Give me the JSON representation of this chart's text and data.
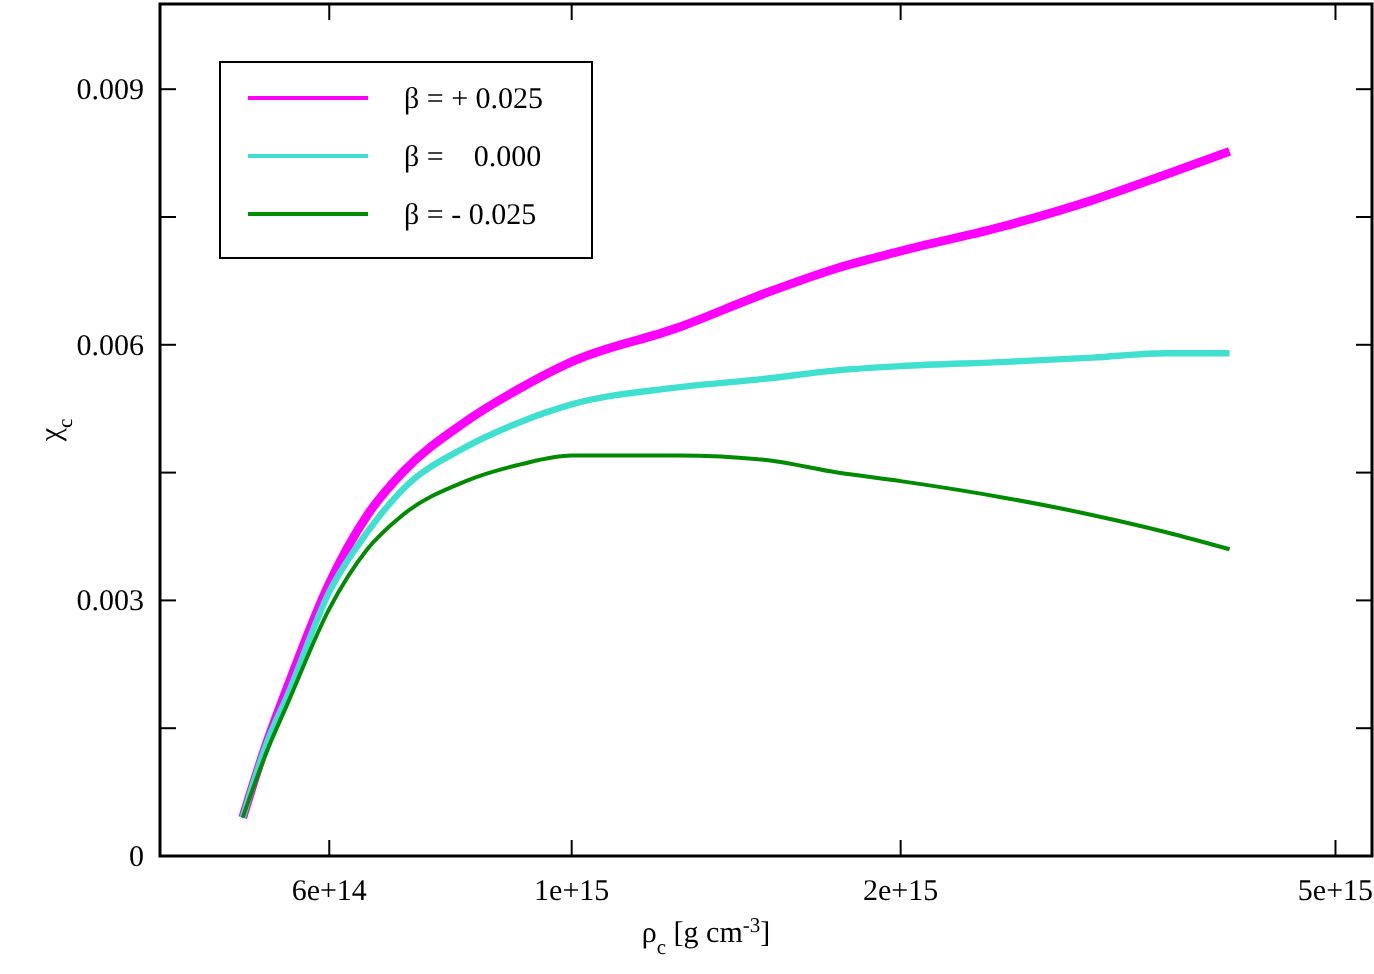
{
  "chart_data": {
    "type": "line",
    "xlabel": "ρ$_{c}$ [g cm$^{-3}$]",
    "ylabel": "χ$_{c}$",
    "log": "x",
    "x": [
      500000000000000.0,
      525000000000000.0,
      550000000000000.0,
      600000000000000.0,
      650000000000000.0,
      700000000000000.0,
      800000000000000.0,
      900000000000000.0,
      1000000000000000.0,
      1250000000000000.0,
      1500000000000000.0,
      1750000000000000.0,
      2000000000000000.0,
      2500000000000000.0,
      3000000000000000.0,
      3500000000000000.0,
      4000000000000000.0
    ],
    "series": [
      {
        "name": "β = + 0.025",
        "color": "#ff00ff",
        "values": [
          0.00045,
          0.0013,
          0.002,
          0.0032,
          0.004,
          0.0045,
          0.0051,
          0.0055,
          0.0058,
          0.0062,
          0.0066,
          0.0069,
          0.0071,
          0.0074,
          0.0077,
          0.008,
          0.00827
        ]
      },
      {
        "name": "β =    0.000",
        "color": "#40e0d0",
        "values": [
          0.00045,
          0.0013,
          0.0019,
          0.0031,
          0.0038,
          0.0043,
          0.0048,
          0.0051,
          0.0053,
          0.0055,
          0.0056,
          0.0057,
          0.00575,
          0.0058,
          0.00585,
          0.0059,
          0.0059
        ]
      },
      {
        "name": "β = - 0.025",
        "color": "#008b00",
        "values": [
          0.00045,
          0.0012,
          0.0018,
          0.0029,
          0.0036,
          0.004,
          0.0044,
          0.0046,
          0.0047,
          0.0047,
          0.00465,
          0.0045,
          0.0044,
          0.0042,
          0.004,
          0.0038,
          0.0036
        ]
      }
    ],
    "xlim": [
      420000000000000.0,
      5400000000000000.0
    ],
    "ylim": [
      0,
      0.01
    ],
    "xticks": [
      {
        "value": 600000000000000.0,
        "label": "6e+14"
      },
      {
        "value": 1000000000000000.0,
        "label": "1e+15"
      },
      {
        "value": 2000000000000000.0,
        "label": "2e+15"
      },
      {
        "value": 5000000000000000.0,
        "label": "5e+15"
      }
    ],
    "yticks": [
      0,
      {
        "value": 0.0015,
        "label": null
      },
      0.003,
      {
        "value": 0.0045,
        "label": null
      },
      0.006,
      {
        "value": 0.0075,
        "label": null
      },
      0.009
    ],
    "legend": "top left",
    "grid": false,
    "marker": "none",
    "line_style": "solid"
  }
}
